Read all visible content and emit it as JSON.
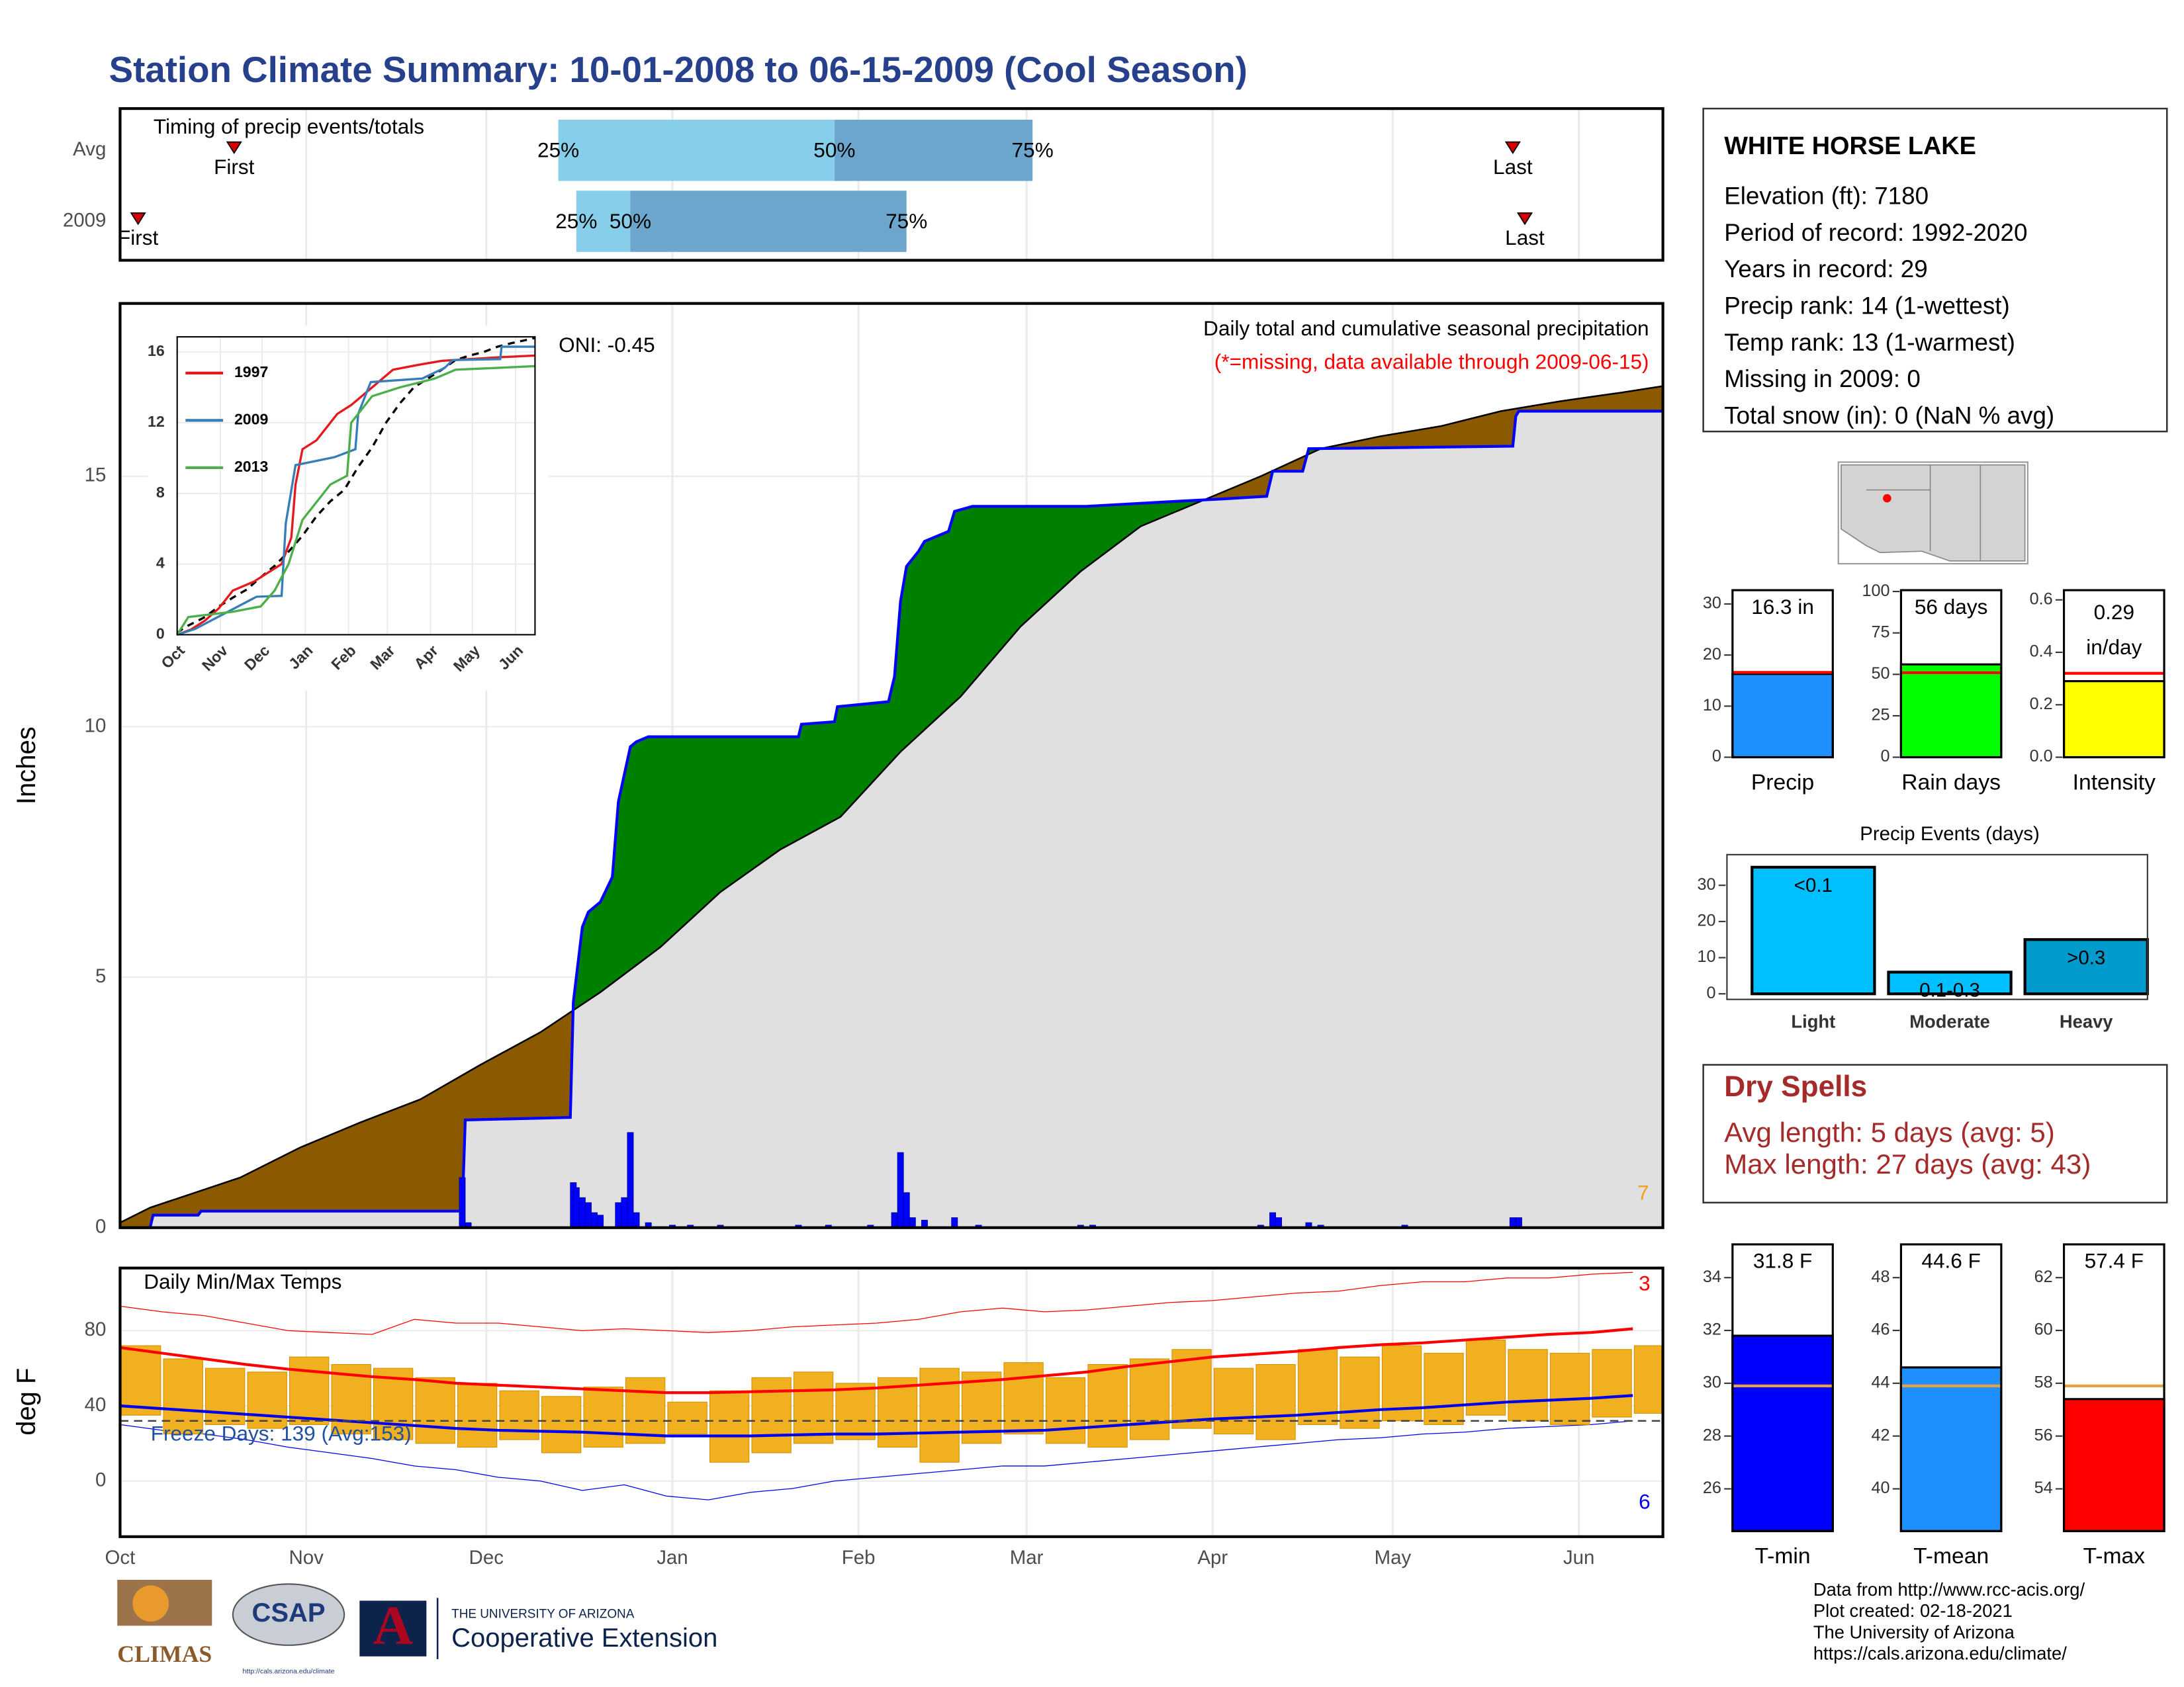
{
  "title": "Station Climate Summary: 10-01-2008 to 06-15-2009 (Cool Season)",
  "station": {
    "name": "WHITE HORSE LAKE",
    "lines": [
      "Elevation (ft): 7180",
      "Period of record: 1992-2020",
      "Years in record: 29",
      "Precip rank: 14 (1-wettest)",
      "Temp rank: 13 (1-warmest)",
      "Missing in 2009: 0",
      "Total snow (in): 0 (NaN % avg)"
    ]
  },
  "dry_spells": {
    "title": "Dry Spells",
    "lines": [
      "Avg length: 5 days (avg: 5)",
      "Max length: 27 days (avg: 43)"
    ]
  },
  "logos": [
    "CLIMAS",
    "CSAP",
    "http://cals.arizona.edu/climate",
    "THE UNIVERSITY OF ARIZONA",
    "Cooperative Extension"
  ],
  "credits": [
    "Data from http://www.rcc-acis.org/",
    "Plot created: 02-18-2021",
    "The University of Arizona",
    "https://cals.arizona.edu/climate/"
  ],
  "chart_data": [
    {
      "type": "timing",
      "title": "Timing of precip events/totals",
      "categories": [
        "Avg",
        "2009"
      ],
      "first": [
        19,
        3
      ],
      "q25": [
        73,
        76
      ],
      "q50": [
        119,
        85
      ],
      "q75": [
        152,
        131
      ],
      "last": [
        232,
        234
      ],
      "event_labels": [
        "First",
        "Last"
      ],
      "quantile_labels": [
        "25%",
        "50%",
        "75%"
      ],
      "colors": [
        "#87ceeb",
        "#6ca6cd"
      ],
      "marker_color": "#d40000",
      "xlim": [
        0,
        257
      ],
      "xticks": [
        0,
        31,
        61,
        92,
        123,
        151,
        182,
        212,
        243
      ],
      "grid": true
    },
    {
      "type": "cumulative",
      "title": "Daily total and cumulative seasonal precipitation",
      "subtitle": "(*=missing, data available through 2009-06-15)",
      "annotation": "ONI: -0.45",
      "corner_label": 7,
      "ylabel": "Inches",
      "average": {
        "color": "#000000",
        "x": [
          0,
          5,
          10,
          20,
          30,
          40,
          50,
          60,
          70,
          80,
          90,
          100,
          110,
          120,
          130,
          140,
          150,
          160,
          170,
          180,
          190,
          200,
          210,
          220,
          230,
          240,
          250,
          257
        ],
        "values": [
          0.1,
          0.4,
          0.6,
          1.0,
          1.6,
          2.1,
          2.56,
          3.25,
          3.9,
          4.7,
          5.6,
          6.7,
          7.55,
          8.2,
          9.5,
          10.6,
          12.0,
          13.1,
          14.0,
          14.5,
          15.0,
          15.55,
          15.8,
          16.0,
          16.3,
          16.5,
          16.67,
          16.8
        ]
      },
      "season": {
        "color": "#0000ff",
        "x": [
          0,
          5,
          5.5,
          13,
          13.5,
          57,
          57.5,
          75,
          75.5,
          77,
          78,
          80,
          82,
          83,
          85,
          86,
          88,
          113,
          113.5,
          119,
          119.5,
          128,
          129,
          130,
          131,
          133,
          134,
          138,
          139,
          142,
          161,
          176,
          184,
          191,
          192,
          197,
          198,
          232,
          232.5,
          233,
          257
        ],
        "values": [
          0,
          0,
          0.25,
          0.25,
          0.33,
          0.33,
          2.15,
          2.2,
          4.5,
          6.0,
          6.3,
          6.5,
          7.0,
          8.5,
          9.6,
          9.7,
          9.8,
          9.8,
          10.05,
          10.1,
          10.4,
          10.5,
          11.0,
          12.5,
          13.2,
          13.5,
          13.7,
          13.9,
          14.3,
          14.4,
          14.4,
          14.5,
          14.55,
          14.6,
          15.1,
          15.1,
          15.55,
          15.6,
          16.2,
          16.3,
          16.3
        ]
      },
      "daily": {
        "color": "#0000ff",
        "x": [
          57,
          58,
          75.5,
          76,
          77,
          78,
          79,
          80,
          83,
          84,
          85,
          86,
          88,
          92,
          95,
          100,
          113,
          118,
          125,
          129,
          130,
          131,
          132,
          134,
          139,
          143,
          160,
          162,
          190,
          192,
          193,
          198,
          200,
          214,
          232,
          233
        ],
        "values": [
          1.0,
          0.1,
          0.9,
          0.8,
          0.6,
          0.5,
          0.3,
          0.25,
          0.5,
          0.6,
          1.9,
          0.3,
          0.1,
          0.05,
          0.05,
          0.05,
          0.05,
          0.05,
          0.05,
          0.3,
          1.5,
          0.7,
          0.2,
          0.15,
          0.2,
          0.05,
          0.05,
          0.05,
          0.05,
          0.3,
          0.2,
          0.1,
          0.05,
          0.05,
          0.2,
          0.2
        ]
      },
      "fill_colors": {
        "above": "#008000",
        "below": "#8b5a00",
        "base": "#e0e0e0"
      },
      "xlim": [
        0,
        257
      ],
      "xticks": [
        0,
        31,
        61,
        92,
        123,
        151,
        182,
        212,
        243
      ],
      "ylim": [
        0,
        18.45
      ],
      "yticks": [
        0,
        5,
        10,
        15
      ],
      "grid": true
    },
    {
      "type": "line",
      "series": [
        {
          "name": "1997",
          "color": "#e41a1c",
          "x": [
            0,
            10,
            20,
            30,
            40,
            55,
            65,
            75,
            82,
            85,
            90,
            100,
            105,
            115,
            125,
            140,
            155,
            175,
            190,
            210,
            230,
            257
          ],
          "values": [
            0,
            0.3,
            0.8,
            1.5,
            2.5,
            3.0,
            3.5,
            4.0,
            5.5,
            8.5,
            10.5,
            11.0,
            11.5,
            12.5,
            13.0,
            14.0,
            15.0,
            15.3,
            15.5,
            15.6,
            15.7,
            15.8
          ]
        },
        {
          "name": "2009",
          "color": "#377eb8",
          "x": [
            0,
            13,
            57,
            75,
            78,
            85,
            113,
            128,
            130,
            139,
            176,
            192,
            198,
            232,
            233,
            257
          ],
          "values": [
            0,
            0.33,
            2.15,
            2.2,
            6.3,
            9.6,
            10.05,
            10.5,
            12.5,
            14.3,
            14.5,
            15.1,
            15.55,
            15.6,
            16.3,
            16.3
          ]
        },
        {
          "name": "2013",
          "color": "#4daf4a",
          "x": [
            0,
            8,
            40,
            60,
            70,
            80,
            90,
            110,
            122,
            125,
            140,
            160,
            185,
            200,
            257
          ],
          "values": [
            0,
            1.0,
            1.3,
            1.6,
            2.5,
            4.0,
            6.5,
            8.5,
            9.0,
            12.0,
            13.5,
            14.0,
            14.5,
            15.0,
            15.2
          ]
        }
      ],
      "xlim": [
        0,
        257
      ],
      "ylim": [
        0,
        16.86
      ],
      "yticks": [
        0,
        4,
        8,
        12,
        16
      ],
      "xticks": [
        {
          "value": 0,
          "label": "Oct"
        },
        {
          "value": 31,
          "label": "Nov"
        },
        {
          "value": 61,
          "label": "Dec"
        },
        {
          "value": 92,
          "label": "Jan"
        },
        {
          "value": 123,
          "label": "Feb"
        },
        {
          "value": 151,
          "label": "Mar"
        },
        {
          "value": 182,
          "label": "Apr"
        },
        {
          "value": 212,
          "label": "May"
        },
        {
          "value": 243,
          "label": "Jun"
        }
      ],
      "grid": true
    },
    {
      "type": "temps",
      "title": "Daily Min/Max Temps",
      "ylabel": "deg F",
      "annotation": "Freeze Days: 139 (Avg:153)",
      "record_high_count": 3,
      "record_low_count": 6,
      "freeze": 32,
      "x": [
        0,
        7,
        14,
        21,
        28,
        35,
        42,
        49,
        56,
        63,
        70,
        77,
        84,
        91,
        98,
        105,
        112,
        119,
        126,
        133,
        140,
        147,
        154,
        161,
        168,
        175,
        182,
        189,
        196,
        203,
        210,
        217,
        224,
        231,
        238,
        245,
        252
      ],
      "tmax": [
        72,
        65,
        60,
        58,
        66,
        62,
        60,
        55,
        52,
        48,
        45,
        50,
        55,
        42,
        48,
        55,
        58,
        52,
        55,
        60,
        58,
        63,
        55,
        62,
        65,
        70,
        60,
        62,
        70,
        66,
        72,
        68,
        75,
        70,
        68,
        70,
        72
      ],
      "tmin": [
        35,
        25,
        30,
        28,
        30,
        25,
        22,
        20,
        18,
        22,
        15,
        18,
        20,
        25,
        10,
        15,
        20,
        22,
        18,
        10,
        20,
        25,
        20,
        18,
        22,
        28,
        25,
        22,
        30,
        28,
        32,
        30,
        35,
        32,
        30,
        34,
        36
      ],
      "normal_max": [
        71,
        68,
        65,
        62,
        59.5,
        57.5,
        55.5,
        54,
        52,
        51,
        50,
        49,
        48,
        47,
        47,
        47.5,
        48,
        48.5,
        49.5,
        51,
        52.5,
        54,
        56,
        58,
        61,
        63.5,
        66,
        67.5,
        69,
        71,
        72.5,
        73.5,
        75,
        76.5,
        78,
        79,
        81
      ],
      "normal_min": [
        40,
        38.5,
        37,
        35.5,
        34,
        32.5,
        31,
        29.5,
        28,
        27,
        26.5,
        26,
        25,
        24,
        24,
        24,
        24.5,
        25,
        25,
        25.5,
        26,
        26.5,
        27,
        28.5,
        30,
        31.5,
        33,
        34,
        35,
        36.5,
        38,
        39,
        40.5,
        42,
        43,
        44,
        45.5
      ],
      "record_max": [
        93,
        90,
        88,
        84,
        80,
        79,
        78,
        86,
        84,
        84,
        82,
        80,
        81,
        80,
        79,
        80,
        82,
        83,
        84,
        86,
        90,
        92,
        90,
        91,
        93,
        95,
        96,
        98,
        100,
        101,
        104,
        106,
        106,
        108,
        108,
        110,
        111
      ],
      "record_min": [
        30,
        27,
        25,
        22,
        18,
        15,
        12,
        8,
        6,
        2,
        0,
        -5,
        -2,
        -8,
        -10,
        -6,
        -4,
        0,
        2,
        4,
        6,
        8,
        8,
        10,
        12,
        14,
        16,
        18,
        20,
        22,
        23,
        25,
        26,
        28,
        29,
        30,
        32
      ],
      "colors": {
        "bar": "#f0b020",
        "max": "#ff0000",
        "min": "#0000ee",
        "freeze": "#444444"
      },
      "xlim": [
        0,
        257
      ],
      "ylim": [
        -29.6,
        113.3
      ],
      "yticks": [
        0,
        40,
        80
      ],
      "xticks": [
        {
          "value": 0,
          "label": "Oct"
        },
        {
          "value": 31,
          "label": "Nov"
        },
        {
          "value": 61,
          "label": "Dec"
        },
        {
          "value": 92,
          "label": "Jan"
        },
        {
          "value": 123,
          "label": "Feb"
        },
        {
          "value": 151,
          "label": "Mar"
        },
        {
          "value": 182,
          "label": "Apr"
        },
        {
          "value": 212,
          "label": "May"
        },
        {
          "value": 243,
          "label": "Jun"
        }
      ],
      "grid": true
    },
    {
      "type": "summary",
      "categories": [
        "Precip"
      ],
      "values": [
        16.3
      ],
      "value_labels": [
        "16.3 in"
      ],
      "normal": 16.6,
      "normal_color": "#ff0000",
      "color": "#1e90ff",
      "ylim": [
        0,
        32.7
      ],
      "yticks": [
        0,
        10,
        20,
        30
      ]
    },
    {
      "type": "summary",
      "categories": [
        "Rain days"
      ],
      "values": [
        56
      ],
      "value_labels": [
        "56 days"
      ],
      "normal": 51,
      "normal_color": "#ff0000",
      "color": "#00ff00",
      "ylim": [
        0,
        100.8
      ],
      "yticks": [
        0,
        25,
        50,
        75,
        100
      ]
    },
    {
      "type": "summary",
      "categories": [
        "Intensity"
      ],
      "values": [
        0.29
      ],
      "unit": "in/day",
      "normal": 0.32,
      "normal_color": "#ff0000",
      "color": "#ffff00",
      "ylim": [
        0,
        0.637
      ],
      "yticks": [
        {
          "value": 0,
          "label": "0.0"
        },
        0.2,
        0.4,
        0.6
      ]
    },
    {
      "type": "bar",
      "title": "Precip Events (days)",
      "categories": [
        "Light",
        "Moderate",
        "Heavy"
      ],
      "values": [
        35,
        6,
        15
      ],
      "bin_labels": [
        "<0.1",
        "0.1-0.3",
        ">0.3"
      ],
      "colors": [
        "#00bfff",
        "#00bfff",
        "#009acd"
      ],
      "ylim": [
        0,
        35.4
      ],
      "yticks": [
        0,
        10,
        20,
        30
      ]
    },
    {
      "type": "summary",
      "categories": [
        "T-min"
      ],
      "values": [
        31.8
      ],
      "value_labels": [
        "31.8 F"
      ],
      "normal": 29.9,
      "normal_color": "#e8a040",
      "color": "#0000ff",
      "ylim": [
        24.4,
        35.26
      ],
      "yticks": [
        26,
        28,
        30,
        32,
        34
      ]
    },
    {
      "type": "summary",
      "categories": [
        "T-mean"
      ],
      "values": [
        44.6
      ],
      "value_labels": [
        "44.6 F"
      ],
      "normal": 43.9,
      "normal_color": "#e8a040",
      "color": "#1e90ff",
      "ylim": [
        38.4,
        49.26
      ],
      "yticks": [
        40,
        42,
        44,
        46,
        48
      ]
    },
    {
      "type": "summary",
      "categories": [
        "T-max"
      ],
      "values": [
        57.4
      ],
      "value_labels": [
        "57.4 F"
      ],
      "normal": 57.9,
      "normal_color": "#e8a040",
      "color": "#ff0000",
      "ylim": [
        52.4,
        63.26
      ],
      "yticks": [
        54,
        56,
        58,
        60,
        62
      ]
    }
  ]
}
